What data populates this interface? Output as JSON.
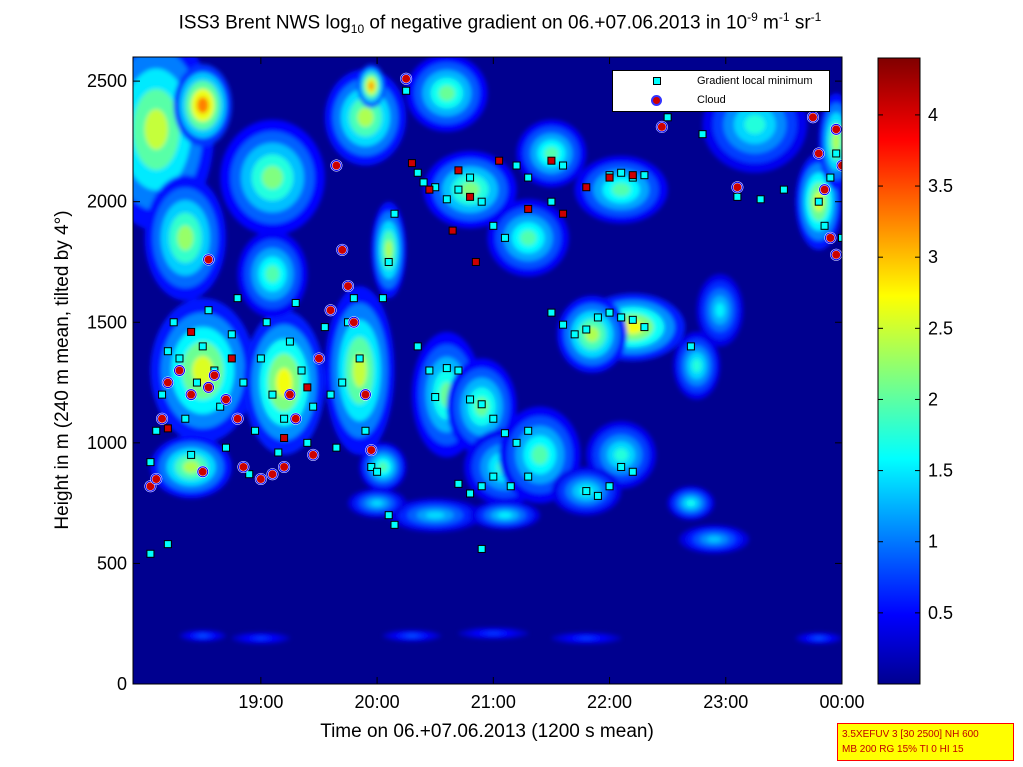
{
  "title": {
    "part1": "ISS3 Brent NWS log",
    "sub": "10",
    "part2": " of negative gradient on 06.+07.06.2013 in 10",
    "sup1": "-9",
    "part3": " m",
    "sup2": "-1",
    "part4": " sr",
    "sup3": "-1"
  },
  "legend": {
    "entry1": "Gradient local minimum",
    "entry2": "Cloud"
  },
  "info_box": {
    "line1": "3.5XEFUV 3 [30 2500] NH 600",
    "line2": "MB 200 RG 15% TI 0 HI 15"
  },
  "colors": {
    "background": "#00008f",
    "gradient_marker": "#00ffff",
    "cloud_marker": "#cc0000",
    "cloud_ring": "#0000ff"
  },
  "chart_data": {
    "type": "heatmap",
    "xlabel": "Time on 06.+07.06.2013 (1200 s mean)",
    "ylabel": "Height in m (240 m mean, tilted by 4°)",
    "x_ticks": [
      "19:00",
      "20:00",
      "21:00",
      "22:00",
      "23:00",
      "00:00"
    ],
    "x_tick_hours": [
      19,
      20,
      21,
      22,
      23,
      24
    ],
    "xlim_hours": [
      17.9,
      24.0
    ],
    "y_ticks": [
      0,
      500,
      1000,
      1500,
      2000,
      2500
    ],
    "ylim": [
      0,
      2600
    ],
    "colorbar": {
      "ticks": [
        "0.5",
        "1",
        "1.5",
        "2",
        "2.5",
        "3",
        "3.5",
        "4"
      ],
      "tick_values": [
        0.5,
        1,
        1.5,
        2,
        2.5,
        3,
        3.5,
        4
      ],
      "range": [
        0,
        4.4
      ],
      "colormap": "jet"
    },
    "blobs": [
      {
        "t": 18.1,
        "h": 2300,
        "wt": 0.5,
        "wh": 420,
        "v": 2.5
      },
      {
        "t": 18.5,
        "h": 2400,
        "wt": 0.25,
        "wh": 170,
        "v": 3.3
      },
      {
        "t": 18.35,
        "h": 1850,
        "wt": 0.35,
        "wh": 260,
        "v": 2.3
      },
      {
        "t": 19.1,
        "h": 2100,
        "wt": 0.45,
        "wh": 240,
        "v": 2.2
      },
      {
        "t": 19.9,
        "h": 2350,
        "wt": 0.35,
        "wh": 200,
        "v": 2.4
      },
      {
        "t": 19.95,
        "h": 2480,
        "wt": 0.12,
        "wh": 90,
        "v": 3.2
      },
      {
        "t": 20.6,
        "h": 2450,
        "wt": 0.35,
        "wh": 160,
        "v": 2.1
      },
      {
        "t": 18.5,
        "h": 1300,
        "wt": 0.45,
        "wh": 300,
        "v": 2.6
      },
      {
        "t": 19.2,
        "h": 1250,
        "wt": 0.35,
        "wh": 300,
        "v": 2.7
      },
      {
        "t": 19.85,
        "h": 1300,
        "wt": 0.3,
        "wh": 350,
        "v": 2.5
      },
      {
        "t": 19.1,
        "h": 1700,
        "wt": 0.3,
        "wh": 180,
        "v": 2.0
      },
      {
        "t": 20.1,
        "h": 1800,
        "wt": 0.15,
        "wh": 200,
        "v": 2.4
      },
      {
        "t": 18.4,
        "h": 900,
        "wt": 0.35,
        "wh": 130,
        "v": 2.4
      },
      {
        "t": 20.05,
        "h": 900,
        "wt": 0.2,
        "wh": 100,
        "v": 2.0
      },
      {
        "t": 20.6,
        "h": 1200,
        "wt": 0.3,
        "wh": 260,
        "v": 2.1
      },
      {
        "t": 20.9,
        "h": 1150,
        "wt": 0.3,
        "wh": 200,
        "v": 2.1
      },
      {
        "t": 20.8,
        "h": 2050,
        "wt": 0.4,
        "wh": 160,
        "v": 2.2
      },
      {
        "t": 21.3,
        "h": 1850,
        "wt": 0.35,
        "wh": 160,
        "v": 2.0
      },
      {
        "t": 21.5,
        "h": 2200,
        "wt": 0.3,
        "wh": 140,
        "v": 2.0
      },
      {
        "t": 22.1,
        "h": 2050,
        "wt": 0.4,
        "wh": 140,
        "v": 2.0
      },
      {
        "t": 22.2,
        "h": 1480,
        "wt": 0.45,
        "wh": 140,
        "v": 2.7
      },
      {
        "t": 21.85,
        "h": 1450,
        "wt": 0.3,
        "wh": 160,
        "v": 2.4
      },
      {
        "t": 21.1,
        "h": 900,
        "wt": 0.35,
        "wh": 160,
        "v": 1.9
      },
      {
        "t": 21.4,
        "h": 950,
        "wt": 0.35,
        "wh": 200,
        "v": 2.0
      },
      {
        "t": 22.1,
        "h": 950,
        "wt": 0.3,
        "wh": 140,
        "v": 1.8
      },
      {
        "t": 21.8,
        "h": 800,
        "wt": 0.3,
        "wh": 100,
        "v": 1.7
      },
      {
        "t": 20.5,
        "h": 700,
        "wt": 0.4,
        "wh": 70,
        "v": 1.5
      },
      {
        "t": 20.0,
        "h": 750,
        "wt": 0.25,
        "wh": 60,
        "v": 1.5
      },
      {
        "t": 21.1,
        "h": 700,
        "wt": 0.3,
        "wh": 60,
        "v": 1.6
      },
      {
        "t": 22.7,
        "h": 750,
        "wt": 0.2,
        "wh": 70,
        "v": 1.7
      },
      {
        "t": 22.9,
        "h": 600,
        "wt": 0.3,
        "wh": 60,
        "v": 1.4
      },
      {
        "t": 22.75,
        "h": 1320,
        "wt": 0.2,
        "wh": 140,
        "v": 1.8
      },
      {
        "t": 23.25,
        "h": 2320,
        "wt": 0.45,
        "wh": 200,
        "v": 1.8
      },
      {
        "t": 23.8,
        "h": 2000,
        "wt": 0.2,
        "wh": 200,
        "v": 2.6
      },
      {
        "t": 23.95,
        "h": 2250,
        "wt": 0.15,
        "wh": 200,
        "v": 2.4
      },
      {
        "t": 22.95,
        "h": 1550,
        "wt": 0.2,
        "wh": 150,
        "v": 1.6
      },
      {
        "t": 18.5,
        "h": 200,
        "wt": 0.2,
        "wh": 25,
        "v": 0.9
      },
      {
        "t": 19.0,
        "h": 190,
        "wt": 0.25,
        "wh": 25,
        "v": 0.8
      },
      {
        "t": 20.3,
        "h": 200,
        "wt": 0.25,
        "wh": 25,
        "v": 0.9
      },
      {
        "t": 21.0,
        "h": 210,
        "wt": 0.3,
        "wh": 25,
        "v": 0.8
      },
      {
        "t": 21.8,
        "h": 190,
        "wt": 0.3,
        "wh": 25,
        "v": 0.8
      },
      {
        "t": 23.8,
        "h": 190,
        "wt": 0.2,
        "wh": 25,
        "v": 0.9
      }
    ],
    "gradient_minima": [
      [
        18.05,
        920
      ],
      [
        18.1,
        1050
      ],
      [
        18.15,
        1200
      ],
      [
        18.2,
        1380
      ],
      [
        18.25,
        1500
      ],
      [
        18.3,
        1350
      ],
      [
        18.35,
        1100
      ],
      [
        18.4,
        950
      ],
      [
        18.45,
        1250
      ],
      [
        18.5,
        1400
      ],
      [
        18.55,
        1550
      ],
      [
        18.6,
        1300
      ],
      [
        18.65,
        1150
      ],
      [
        18.7,
        980
      ],
      [
        18.75,
        1450
      ],
      [
        18.8,
        1600
      ],
      [
        18.85,
        1250
      ],
      [
        18.9,
        870
      ],
      [
        18.95,
        1050
      ],
      [
        19.0,
        1350
      ],
      [
        19.05,
        1500
      ],
      [
        19.1,
        1200
      ],
      [
        19.15,
        960
      ],
      [
        19.2,
        1100
      ],
      [
        19.25,
        1420
      ],
      [
        19.3,
        1580
      ],
      [
        19.35,
        1300
      ],
      [
        19.4,
        1000
      ],
      [
        19.45,
        1150
      ],
      [
        19.5,
        1350
      ],
      [
        19.55,
        1480
      ],
      [
        19.6,
        1200
      ],
      [
        19.65,
        980
      ],
      [
        19.7,
        1250
      ],
      [
        19.75,
        1500
      ],
      [
        19.8,
        1600
      ],
      [
        19.85,
        1350
      ],
      [
        19.9,
        1050
      ],
      [
        19.95,
        900
      ],
      [
        20.0,
        880
      ],
      [
        20.05,
        1600
      ],
      [
        20.1,
        1750
      ],
      [
        20.15,
        1950
      ],
      [
        20.25,
        2460
      ],
      [
        20.35,
        2120
      ],
      [
        20.4,
        2080
      ],
      [
        20.5,
        2060
      ],
      [
        20.6,
        2010
      ],
      [
        20.7,
        2050
      ],
      [
        20.8,
        2100
      ],
      [
        20.9,
        2000
      ],
      [
        21.0,
        1900
      ],
      [
        21.1,
        1850
      ],
      [
        21.2,
        2150
      ],
      [
        21.3,
        2100
      ],
      [
        21.5,
        2000
      ],
      [
        21.6,
        2150
      ],
      [
        22.0,
        2110
      ],
      [
        22.1,
        2120
      ],
      [
        22.2,
        2100
      ],
      [
        22.3,
        2110
      ],
      [
        22.5,
        2350
      ],
      [
        22.8,
        2280
      ],
      [
        23.1,
        2020
      ],
      [
        23.3,
        2010
      ],
      [
        23.5,
        2050
      ],
      [
        20.35,
        1400
      ],
      [
        20.45,
        1300
      ],
      [
        20.5,
        1190
      ],
      [
        20.6,
        1310
      ],
      [
        20.7,
        1300
      ],
      [
        20.8,
        1180
      ],
      [
        20.9,
        1160
      ],
      [
        21.0,
        1100
      ],
      [
        21.1,
        1040
      ],
      [
        21.2,
        1000
      ],
      [
        21.3,
        1050
      ],
      [
        20.7,
        830
      ],
      [
        20.8,
        790
      ],
      [
        20.9,
        820
      ],
      [
        21.0,
        860
      ],
      [
        21.15,
        820
      ],
      [
        21.3,
        860
      ],
      [
        21.5,
        1540
      ],
      [
        21.6,
        1490
      ],
      [
        21.7,
        1450
      ],
      [
        21.8,
        1470
      ],
      [
        21.9,
        1520
      ],
      [
        22.0,
        1540
      ],
      [
        22.1,
        1520
      ],
      [
        22.2,
        1510
      ],
      [
        22.3,
        1480
      ],
      [
        21.8,
        800
      ],
      [
        21.9,
        780
      ],
      [
        22.0,
        820
      ],
      [
        22.1,
        900
      ],
      [
        22.2,
        880
      ],
      [
        22.7,
        1400
      ],
      [
        20.1,
        700
      ],
      [
        20.15,
        660
      ],
      [
        18.05,
        540
      ],
      [
        18.2,
        580
      ],
      [
        20.9,
        560
      ],
      [
        23.8,
        2000
      ],
      [
        23.85,
        1900
      ],
      [
        23.9,
        2100
      ],
      [
        23.95,
        2200
      ],
      [
        24.0,
        1850
      ]
    ],
    "clouds": [
      [
        18.05,
        820
      ],
      [
        18.1,
        850
      ],
      [
        18.15,
        1100
      ],
      [
        18.2,
        1250
      ],
      [
        18.3,
        1300
      ],
      [
        18.4,
        1200
      ],
      [
        18.5,
        880
      ],
      [
        18.55,
        1230
      ],
      [
        18.6,
        1280
      ],
      [
        18.7,
        1180
      ],
      [
        18.8,
        1100
      ],
      [
        18.85,
        900
      ],
      [
        19.0,
        850
      ],
      [
        19.1,
        870
      ],
      [
        19.2,
        900
      ],
      [
        19.25,
        1200
      ],
      [
        19.3,
        1100
      ],
      [
        19.45,
        950
      ],
      [
        19.5,
        1350
      ],
      [
        19.6,
        1550
      ],
      [
        19.65,
        2150
      ],
      [
        19.7,
        1800
      ],
      [
        19.75,
        1650
      ],
      [
        19.8,
        1500
      ],
      [
        19.9,
        1200
      ],
      [
        19.95,
        970
      ],
      [
        18.55,
        1760
      ],
      [
        20.25,
        2510
      ],
      [
        22.45,
        2310
      ],
      [
        23.1,
        2060
      ],
      [
        23.75,
        2350
      ],
      [
        23.8,
        2200
      ],
      [
        23.85,
        2050
      ],
      [
        23.9,
        1850
      ],
      [
        23.95,
        1780
      ],
      [
        24.0,
        2150
      ],
      [
        23.95,
        2300
      ]
    ],
    "cloud_tops": [
      [
        20.3,
        2160
      ],
      [
        20.45,
        2050
      ],
      [
        20.7,
        2130
      ],
      [
        20.8,
        2020
      ],
      [
        21.05,
        2170
      ],
      [
        21.3,
        1970
      ],
      [
        21.5,
        2170
      ],
      [
        21.6,
        1950
      ],
      [
        21.8,
        2060
      ],
      [
        22.0,
        2100
      ],
      [
        22.2,
        2110
      ],
      [
        20.65,
        1880
      ],
      [
        20.85,
        1750
      ],
      [
        19.4,
        1230
      ],
      [
        19.2,
        1020
      ],
      [
        18.75,
        1350
      ],
      [
        18.4,
        1460
      ],
      [
        18.2,
        1060
      ]
    ]
  }
}
